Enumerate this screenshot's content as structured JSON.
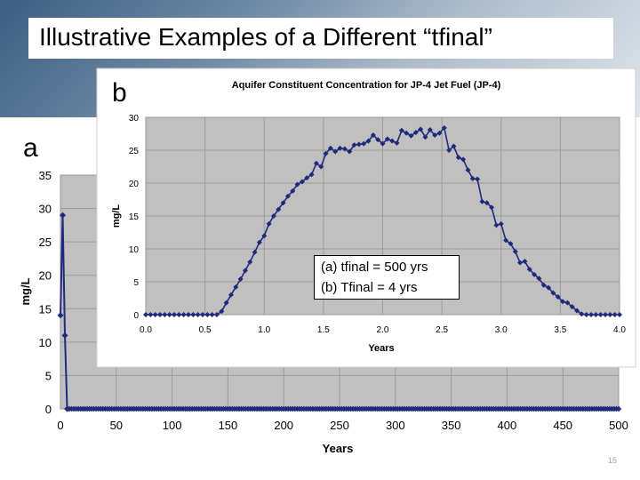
{
  "slide": {
    "title": "Illustrative Examples of a Different “tfinal”",
    "label_a": "a",
    "label_b": "b",
    "page_number": "15",
    "note_line1": "(a) tfinal = 500 yrs",
    "note_line2": "(b) Tfinal = 4 yrs"
  },
  "chart_data": [
    {
      "id": "a",
      "type": "line",
      "title": "",
      "xlabel": "Years",
      "ylabel": "mg/L",
      "xlim": [
        0,
        500
      ],
      "ylim": [
        0,
        35
      ],
      "xticks": [
        "0",
        "50",
        "100",
        "150",
        "200",
        "250",
        "300",
        "350",
        "400",
        "450",
        "500"
      ],
      "yticks": [
        "0",
        "5",
        "10",
        "15",
        "20",
        "25",
        "30",
        "35"
      ],
      "grid": true,
      "series": [
        {
          "color": "#1f2a7a",
          "points": [
            [
              0,
              14
            ],
            [
              2,
              29
            ],
            [
              4,
              11
            ],
            [
              6,
              0
            ],
            [
              500,
              0
            ]
          ],
          "dense_zero_markers": true
        }
      ]
    },
    {
      "id": "b",
      "type": "line",
      "title": "Aquifer Constituent Concentration for JP-4 Jet Fuel (JP-4)",
      "xlabel": "Years",
      "ylabel": "mg/L",
      "xlim": [
        0.0,
        4.0
      ],
      "ylim": [
        0,
        30
      ],
      "xticks": [
        "0.0",
        "0.5",
        "1.0",
        "1.5",
        "2.0",
        "2.5",
        "3.0",
        "3.5",
        "4.0"
      ],
      "yticks": [
        "0",
        "5",
        "10",
        "15",
        "20",
        "25",
        "30"
      ],
      "grid": true,
      "series": [
        {
          "color": "#1f2a7a",
          "x": [
            0.0,
            0.04,
            0.08,
            0.12,
            0.16,
            0.2,
            0.24,
            0.28,
            0.32,
            0.36,
            0.4,
            0.44,
            0.48,
            0.52,
            0.56,
            0.6,
            0.64,
            0.68,
            0.72,
            0.76,
            0.8,
            0.84,
            0.88,
            0.92,
            0.96,
            1.0,
            1.04,
            1.08,
            1.12,
            1.16,
            1.2,
            1.24,
            1.28,
            1.32,
            1.36,
            1.4,
            1.44,
            1.48,
            1.52,
            1.56,
            1.6,
            1.64,
            1.68,
            1.72,
            1.76,
            1.8,
            1.84,
            1.88,
            1.92,
            1.96,
            2.0,
            2.04,
            2.08,
            2.12,
            2.16,
            2.2,
            2.24,
            2.28,
            2.32,
            2.36,
            2.4,
            2.44,
            2.48,
            2.52,
            2.56,
            2.6,
            2.64,
            2.68,
            2.72,
            2.76,
            2.8,
            2.84,
            2.88,
            2.92,
            2.96,
            3.0,
            3.04,
            3.08,
            3.12,
            3.16,
            3.2,
            3.24,
            3.28,
            3.32,
            3.36,
            3.4,
            3.44,
            3.48,
            3.52,
            3.56,
            3.6,
            3.64,
            3.68,
            3.72,
            3.76,
            3.8,
            3.84,
            3.88,
            3.92,
            3.96,
            4.0
          ],
          "y": [
            0,
            0,
            0,
            0,
            0,
            0,
            0,
            0,
            0,
            0,
            0,
            0,
            0,
            0,
            0,
            0,
            0.5,
            1.8,
            3.0,
            4.2,
            5.4,
            6.7,
            8.0,
            9.5,
            11.0,
            12.0,
            13.8,
            15.0,
            16.0,
            17.0,
            18.0,
            18.8,
            19.8,
            20.2,
            20.8,
            21.3,
            23.0,
            22.5,
            24.5,
            25.3,
            24.8,
            25.3,
            25.2,
            24.8,
            25.8,
            25.9,
            26.0,
            26.4,
            27.3,
            26.6,
            26.0,
            26.7,
            26.4,
            26.1,
            28.0,
            27.6,
            27.2,
            27.7,
            28.2,
            27.0,
            28.1,
            27.3,
            27.6,
            28.4,
            25.0,
            25.6,
            23.9,
            23.6,
            22.0,
            20.7,
            20.6,
            17.2,
            17.0,
            16.3,
            13.6,
            13.8,
            11.3,
            10.8,
            9.6,
            7.9,
            8.1,
            6.9,
            6.1,
            5.5,
            4.5,
            4.1,
            3.3,
            2.7,
            2.0,
            1.8,
            1.2,
            0.6,
            0.1,
            0,
            0,
            0,
            0,
            0,
            0,
            0,
            0
          ]
        }
      ]
    }
  ]
}
